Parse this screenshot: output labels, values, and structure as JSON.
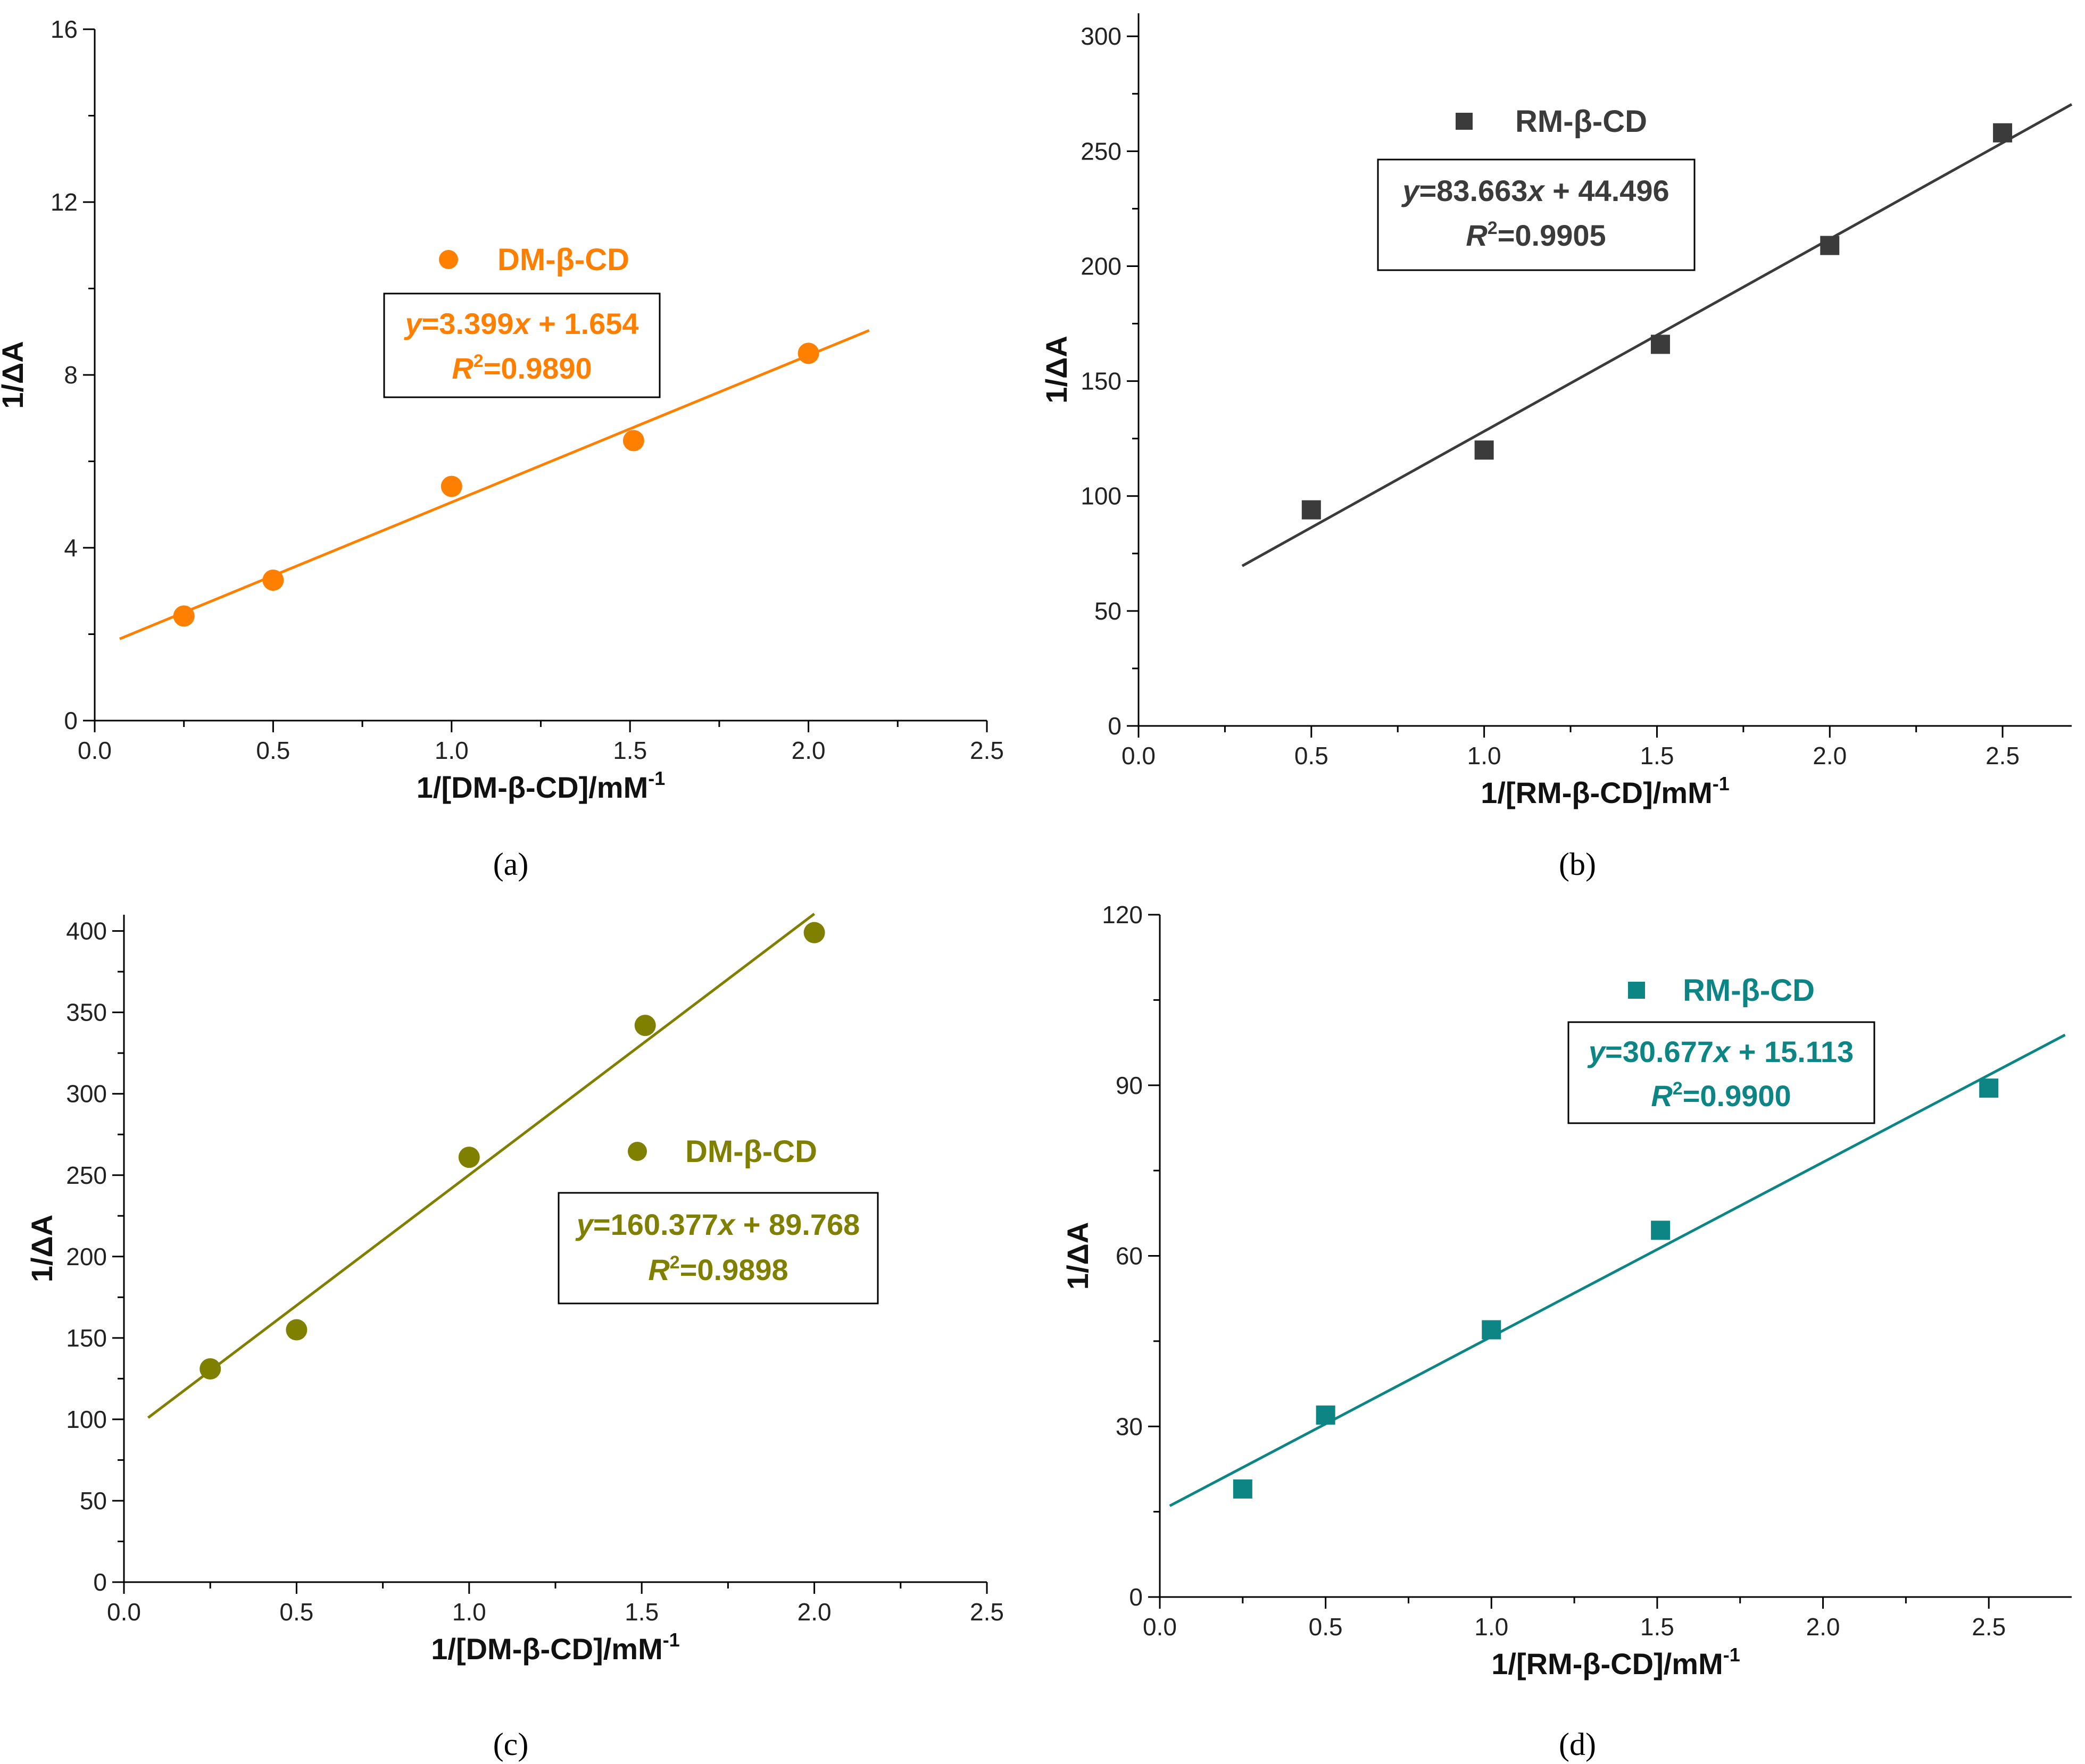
{
  "chart_data": [
    {
      "type": "scatter",
      "panel": "a",
      "caption": "(a)",
      "color": "#ff8000",
      "marker": "circle",
      "xlabel": "1/[DM-β-CD]/mM",
      "xlabel_sup": "-1",
      "ylabel": "1/ΔA",
      "xlim": [
        0,
        2.5
      ],
      "ylim": [
        0,
        16
      ],
      "xticks": [
        0,
        0.5,
        1.0,
        1.5,
        2.0,
        2.5
      ],
      "xtick_labels": [
        "0.0",
        "0.5",
        "1.0",
        "1.5",
        "2.0",
        "2.5"
      ],
      "yticks": [
        0,
        4,
        8,
        12,
        16
      ],
      "ytick_labels": [
        "0",
        "4",
        "8",
        "12",
        "16"
      ],
      "yminor": 1,
      "series": [
        {
          "name": "DM-β-CD",
          "x": [
            0.25,
            0.5,
            1.0,
            1.51,
            2.0
          ],
          "y": [
            2.42,
            3.25,
            5.42,
            6.48,
            8.5
          ]
        }
      ],
      "fit": {
        "slope": 3.399,
        "intercept": 1.654,
        "x_range": [
          0.07,
          2.17
        ],
        "equation_var": "y",
        "equation_rest": "=3.399",
        "equation_x": "x",
        "equation_tail": " + 1.654",
        "r2_label": "R",
        "r2_sup": "2",
        "r2_value": "=0.9890"
      },
      "legend": "DM-β-CD"
    },
    {
      "type": "scatter",
      "panel": "b",
      "caption": "(b)",
      "color": "#3b3b3b",
      "marker": "square",
      "xlabel": "1/[RM-β-CD]/mM",
      "xlabel_sup": "-1",
      "ylabel": "1/ΔA",
      "xlim": [
        0,
        2.7
      ],
      "ylim": [
        0,
        310
      ],
      "xticks": [
        0,
        0.5,
        1.0,
        1.5,
        2.0,
        2.5
      ],
      "xtick_labels": [
        "0.0",
        "0.5",
        "1.0",
        "1.5",
        "2.0",
        "2.5"
      ],
      "yticks": [
        0,
        50,
        100,
        150,
        200,
        250,
        300
      ],
      "ytick_labels": [
        "0",
        "50",
        "100",
        "150",
        "200",
        "250",
        "300"
      ],
      "yminor": 10,
      "series": [
        {
          "name": "RM-β-CD",
          "x": [
            0.5,
            1.0,
            1.51,
            2.0,
            2.5
          ],
          "y": [
            94,
            120,
            166,
            209,
            258
          ]
        }
      ],
      "fit": {
        "slope": 83.663,
        "intercept": 44.496,
        "x_range": [
          0.3,
          2.7
        ],
        "equation_var": "y",
        "equation_rest": "=83.663",
        "equation_x": "x",
        "equation_tail": " + 44.496",
        "r2_label": "R",
        "r2_sup": "2",
        "r2_value": "=0.9905"
      },
      "legend": "RM-β-CD"
    },
    {
      "type": "scatter",
      "panel": "c",
      "caption": "(c)",
      "color": "#7f7f00",
      "marker": "circle",
      "xlabel": "1/[DM-β-CD]/mM",
      "xlabel_sup": "-1",
      "ylabel": "1/ΔA",
      "xlim": [
        0,
        2.5
      ],
      "ylim": [
        0,
        410
      ],
      "xticks": [
        0,
        0.5,
        1.0,
        1.5,
        2.0,
        2.5
      ],
      "xtick_labels": [
        "0.0",
        "0.5",
        "1.0",
        "1.5",
        "2.0",
        "2.5"
      ],
      "yticks": [
        0,
        50,
        100,
        150,
        200,
        250,
        300,
        350,
        400
      ],
      "ytick_labels": [
        "0",
        "50",
        "100",
        "150",
        "200",
        "250",
        "300",
        "350",
        "400"
      ],
      "yminor": 10,
      "series": [
        {
          "name": "DM-β-CD",
          "x": [
            0.25,
            0.5,
            1.0,
            1.51,
            2.0
          ],
          "y": [
            131,
            155,
            261,
            342,
            399
          ]
        }
      ],
      "fit": {
        "slope": 160.377,
        "intercept": 89.768,
        "x_range": [
          0.07,
          2.0
        ],
        "equation_var": "y",
        "equation_rest": "=160.377",
        "equation_x": "x",
        "equation_tail": " + 89.768",
        "r2_label": "R",
        "r2_sup": "2",
        "r2_value": "=0.9898"
      },
      "legend": "DM-β-CD"
    },
    {
      "type": "scatter",
      "panel": "d",
      "caption": "(d)",
      "color": "#0e8585",
      "marker": "square",
      "xlabel": "1/[RM-β-CD]/mM",
      "xlabel_sup": "-1",
      "ylabel": "1/ΔA",
      "xlim": [
        0,
        2.75
      ],
      "ylim": [
        0,
        120
      ],
      "xticks": [
        0,
        0.5,
        1.0,
        1.5,
        2.0,
        2.5
      ],
      "xtick_labels": [
        "0.0",
        "0.5",
        "1.0",
        "1.5",
        "2.0",
        "2.5"
      ],
      "yticks": [
        0,
        30,
        60,
        90,
        120
      ],
      "ytick_labels": [
        "0",
        "30",
        "60",
        "90",
        "120"
      ],
      "yminor": 10,
      "series": [
        {
          "name": "RM-β-CD",
          "x": [
            0.25,
            0.5,
            1.0,
            1.51,
            2.5
          ],
          "y": [
            19,
            32,
            47,
            64.5,
            89.5
          ]
        }
      ],
      "fit": {
        "slope": 30.677,
        "intercept": 15.113,
        "x_range": [
          0.03,
          2.73
        ],
        "equation_var": "y",
        "equation_rest": "=30.677",
        "equation_x": "x",
        "equation_tail": " + 15.113",
        "r2_label": "R",
        "r2_sup": "2",
        "r2_value": "=0.9900"
      },
      "legend": "RM-β-CD"
    }
  ]
}
